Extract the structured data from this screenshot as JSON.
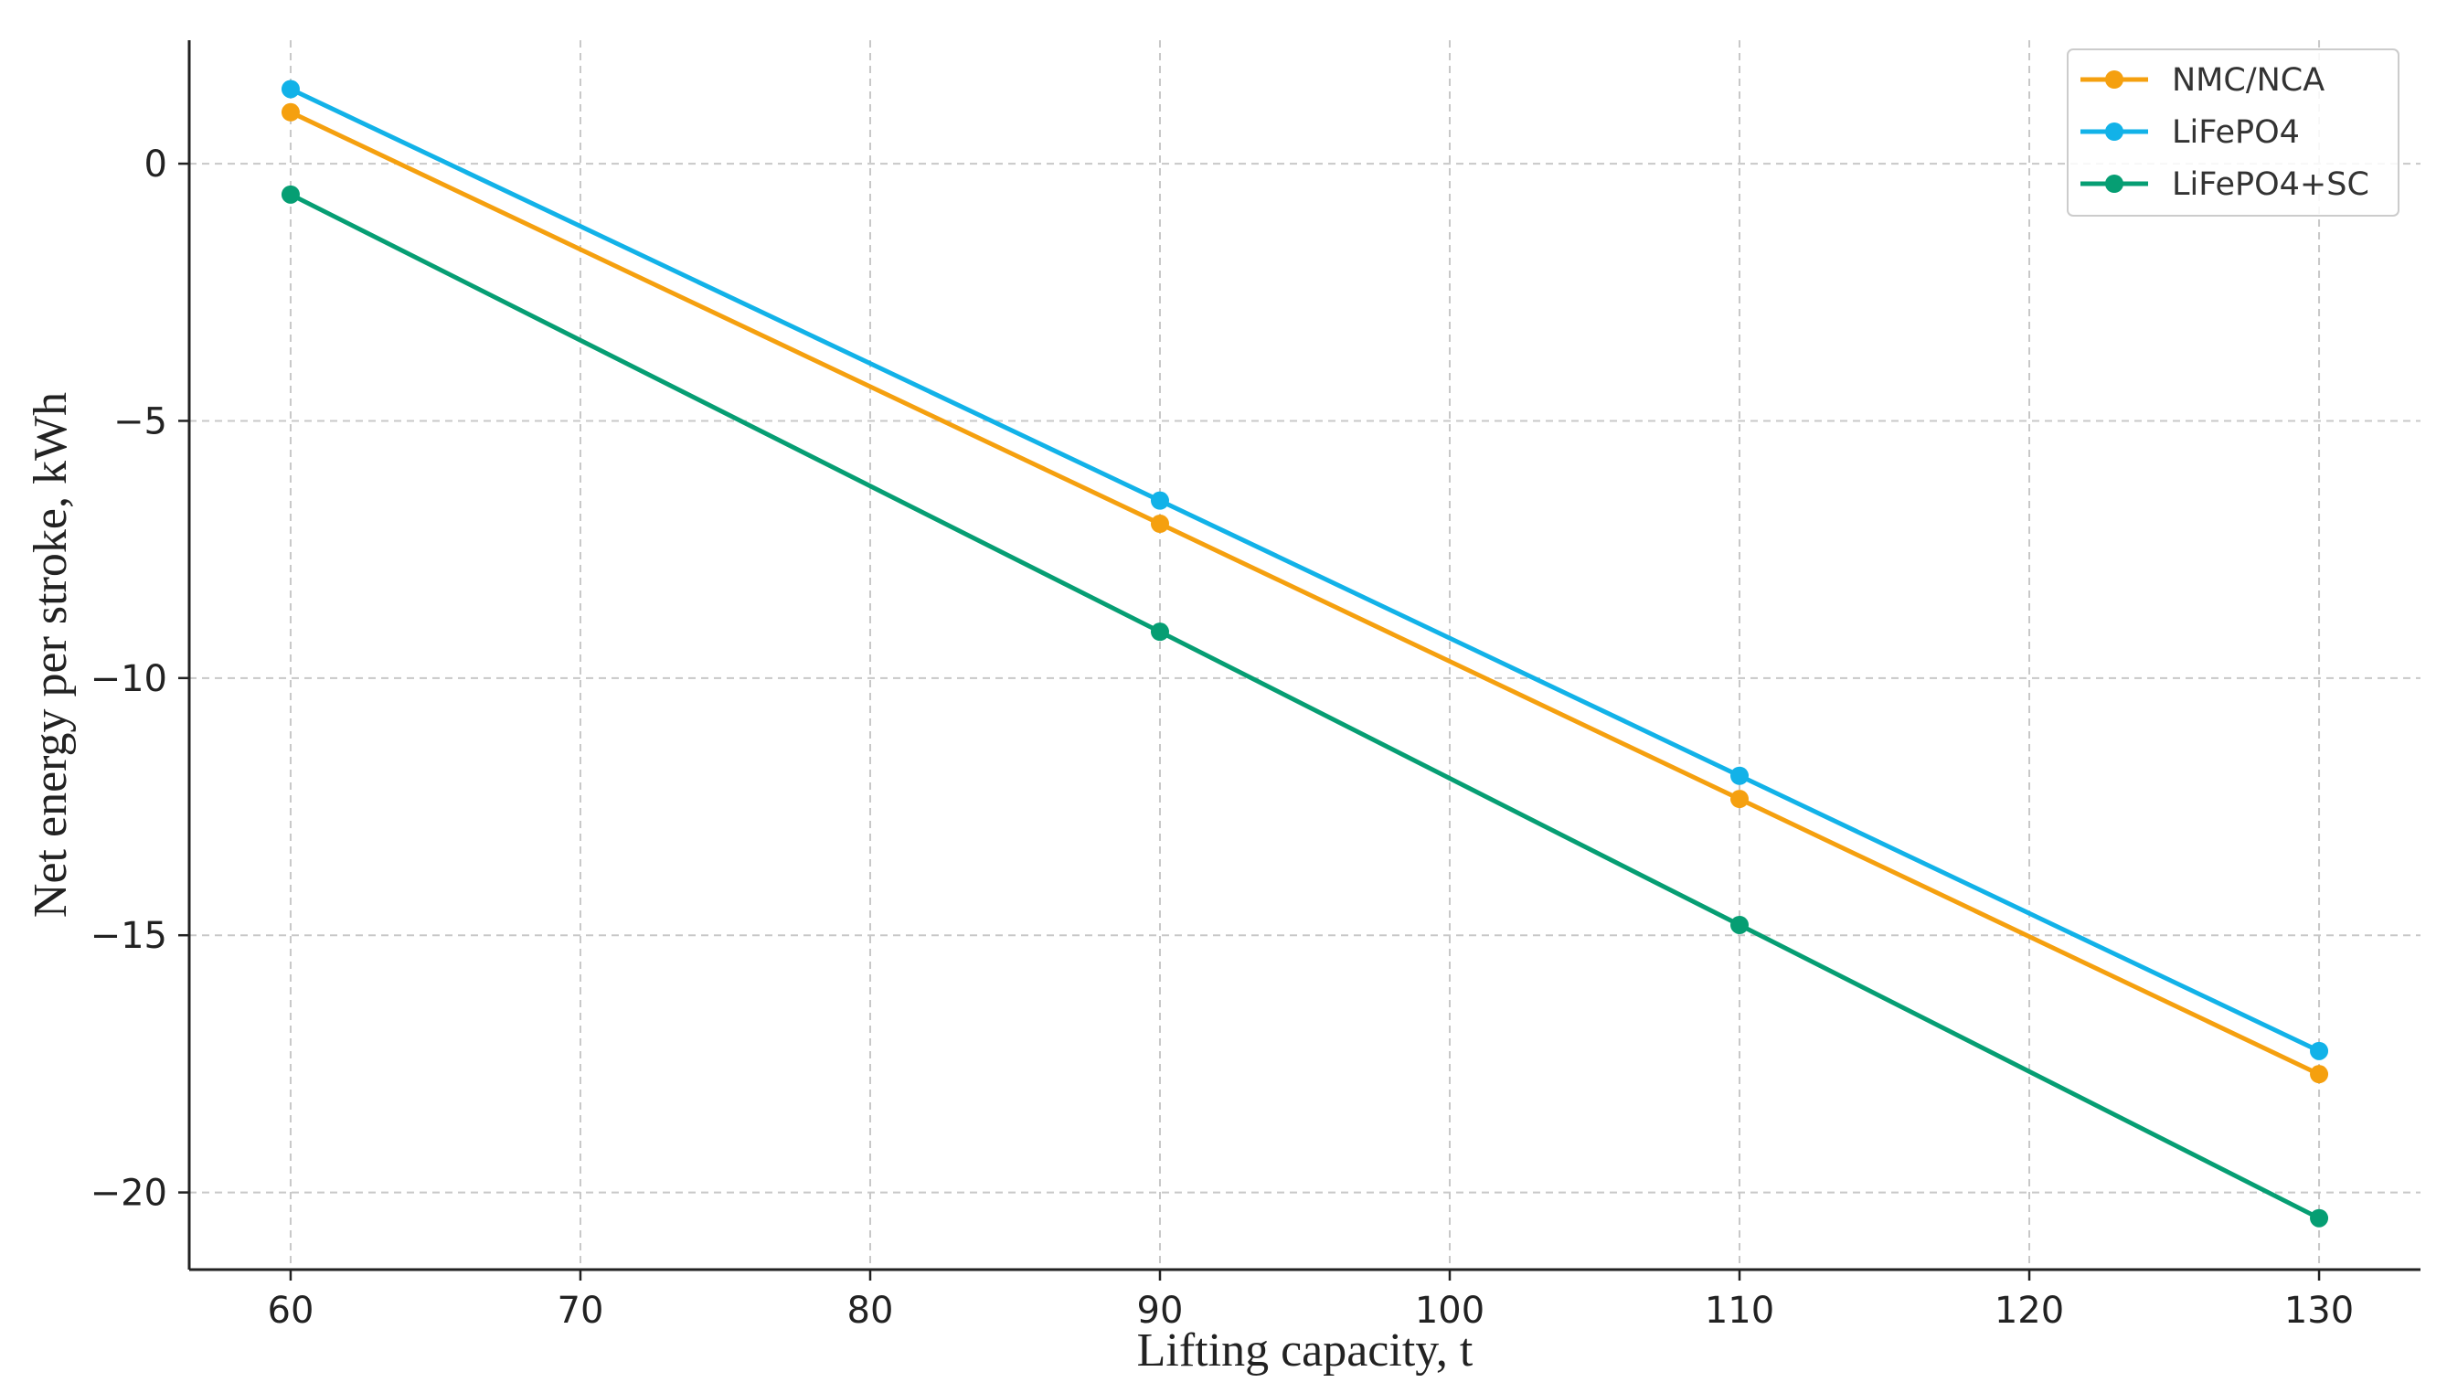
{
  "chart_data": {
    "type": "line",
    "title": "",
    "xlabel": "Lifting capacity, t",
    "ylabel": "Net energy per stroke, kWh",
    "x": [
      60,
      90,
      110,
      130
    ],
    "xlim": [
      56.5,
      133.5
    ],
    "ylim": [
      -21.5,
      2.4
    ],
    "xticks": [
      60,
      70,
      80,
      90,
      100,
      110,
      120,
      130
    ],
    "yticks": [
      0,
      -5,
      -10,
      -15,
      -20
    ],
    "xtick_labels": [
      "60",
      "70",
      "80",
      "90",
      "100",
      "110",
      "120",
      "130"
    ],
    "ytick_labels": [
      "0",
      "−5",
      "−10",
      "−15",
      "−20"
    ],
    "grid": true,
    "legend_position": "top-right",
    "series": [
      {
        "name": "NMC/NCA",
        "color": "#F5A00F",
        "values": [
          1.0,
          -7.0,
          -12.35,
          -17.7
        ]
      },
      {
        "name": "LiFePO4",
        "color": "#12B2E8",
        "values": [
          1.45,
          -6.55,
          -11.9,
          -17.25
        ]
      },
      {
        "name": "LiFePO4+SC",
        "color": "#069E73",
        "values": [
          -0.6,
          -9.1,
          -14.8,
          -20.5
        ]
      }
    ]
  }
}
